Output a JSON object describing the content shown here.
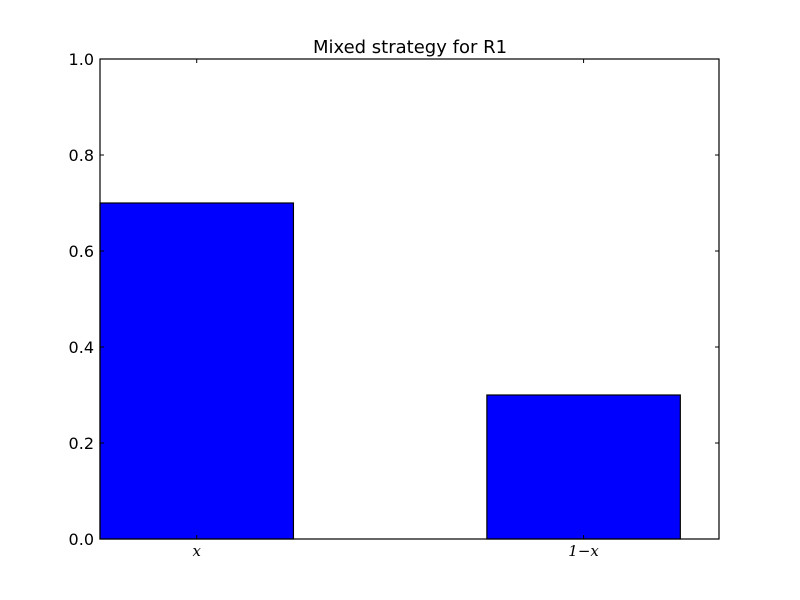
{
  "chart_data": {
    "type": "bar",
    "title": "Mixed strategy for R1",
    "categories": [
      "x",
      "1−x"
    ],
    "values": [
      0.7,
      0.3
    ],
    "xlabel": "",
    "ylabel": "",
    "ylim": [
      0,
      1.0
    ],
    "yticks": [
      0.0,
      0.2,
      0.4,
      0.6,
      0.8,
      1.0
    ],
    "ytick_labels": [
      "0.0",
      "0.2",
      "0.4",
      "0.6",
      "0.8",
      "1.0"
    ],
    "grid": false,
    "bar_color": "#0000ff",
    "edge_color": "#000000"
  }
}
